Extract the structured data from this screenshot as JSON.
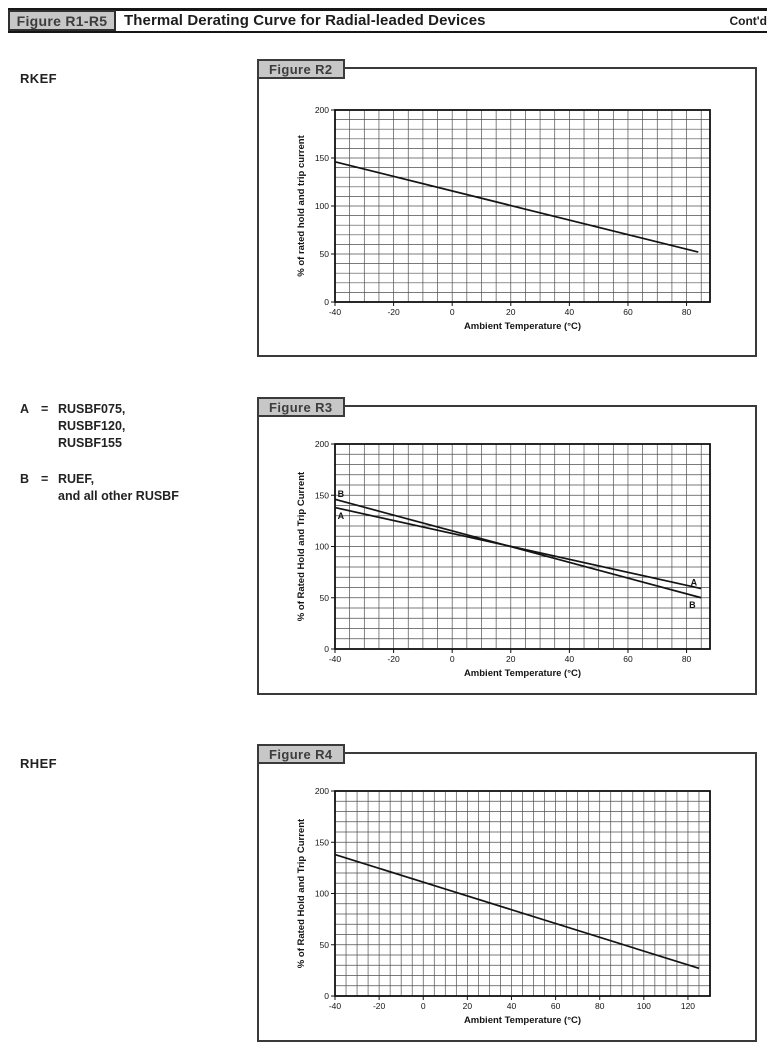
{
  "header": {
    "figure_label": "Figure R1-R5",
    "title": "Thermal Derating Curve for Radial-leaded Devices",
    "contd": "Cont'd"
  },
  "side_labels": {
    "figure_r2_device": "RKEF",
    "figure_r4_device": "RHEF"
  },
  "legend": {
    "a_key": "A",
    "a_eq": "=",
    "a_items": [
      "RUSBF075,",
      "RUSBF120,",
      "RUSBF155"
    ],
    "b_key": "B",
    "b_eq": "=",
    "b_items": [
      "RUEF,",
      "and all other RUSBF"
    ]
  },
  "colors": {
    "tab_background": "#c7c7c7",
    "tab_border": "#3a3a3a",
    "grid_line": "#4f4f4f",
    "plot_border": "#111111",
    "series_line": "#141414"
  },
  "chart_data": [
    {
      "type": "line",
      "figure_tab": "Figure R2",
      "xlabel": "Ambient Temperature (°C)",
      "ylabel": "% of rated hold and trip current",
      "xlim": [
        -40,
        88
      ],
      "ylim": [
        0,
        200
      ],
      "xticks": [
        -40,
        -20,
        0,
        20,
        40,
        60,
        80
      ],
      "yticks": [
        0,
        50,
        100,
        150,
        200
      ],
      "x_minor_step": 5,
      "y_minor_step": 10,
      "grid": true,
      "legend_position": "none",
      "series": [
        {
          "name": "RKEF",
          "points": [
            [
              -40,
              146
            ],
            [
              84,
              52
            ]
          ]
        }
      ],
      "annotations": []
    },
    {
      "type": "line",
      "figure_tab": "Figure R3",
      "xlabel": "Ambient Temperature (°C)",
      "ylabel": "% of Rated Hold and Trip Current",
      "xlim": [
        -40,
        88
      ],
      "ylim": [
        0,
        200
      ],
      "xticks": [
        -40,
        -20,
        0,
        20,
        40,
        60,
        80
      ],
      "yticks": [
        0,
        50,
        100,
        150,
        200
      ],
      "x_minor_step": 5,
      "y_minor_step": 10,
      "grid": true,
      "legend_position": "inline-labels",
      "series": [
        {
          "name": "A",
          "points": [
            [
              -40,
              138
            ],
            [
              85,
              59
            ]
          ]
        },
        {
          "name": "B",
          "points": [
            [
              -40,
              146
            ],
            [
              85,
              50
            ]
          ]
        }
      ],
      "annotations": [
        {
          "text": "B",
          "x": -38,
          "y": 151
        },
        {
          "text": "A",
          "x": -38,
          "y": 130
        },
        {
          "text": "A",
          "x": 82.5,
          "y": 65
        },
        {
          "text": "B",
          "x": 82,
          "y": 43
        }
      ]
    },
    {
      "type": "line",
      "figure_tab": "Figure R4",
      "xlabel": "Ambient Temperature (°C)",
      "ylabel": "% of Rated Hold and Trip Current",
      "xlim": [
        -40,
        130
      ],
      "ylim": [
        0,
        200
      ],
      "xticks": [
        -40,
        -20,
        0,
        20,
        40,
        60,
        80,
        100,
        120
      ],
      "yticks": [
        0,
        50,
        100,
        150,
        200
      ],
      "x_minor_step": 5,
      "y_minor_step": 10,
      "grid": true,
      "legend_position": "none",
      "series": [
        {
          "name": "RHEF",
          "points": [
            [
              -40,
              138
            ],
            [
              125,
              27
            ]
          ]
        }
      ],
      "annotations": []
    }
  ]
}
